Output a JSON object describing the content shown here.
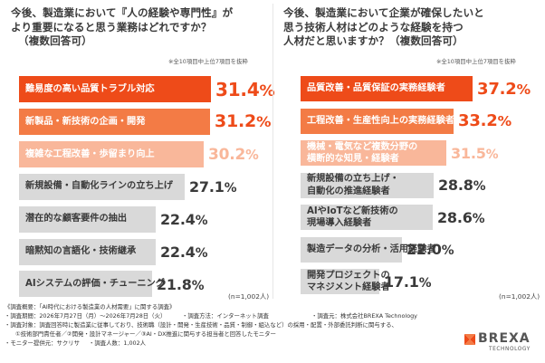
{
  "colors": {
    "dark": "#ee4b19",
    "mid": "#f37b45",
    "light": "#f9b79a",
    "track": "#d9d9d9",
    "dark_text": "#3a3a3a",
    "label_on_color": "#ffffff"
  },
  "left": {
    "title_lines": [
      "今後、製造業において『人の経験や専門性』が",
      "より重要になると思う業務はどれですか？",
      "（複数回答可）"
    ],
    "footnote": "※全10項目中上位7項目を抜粋",
    "n_label": "(n=1,002人)"
  },
  "right": {
    "title_lines": [
      "今後、製造業において企業が確保したいと",
      "思う技術人材はどのような経験を持つ",
      "人材だと思いますか？（複数回答可）"
    ],
    "footnote": "※全10項目中上位7項目を抜粋",
    "n_label": "(n=1,002人)"
  },
  "chart_data": [
    {
      "type": "bar",
      "orientation": "horizontal",
      "title": "今後、製造業において『人の経験や専門性』がより重要になると思う業務はどれですか？（複数回答可）",
      "unit": "%",
      "categories": [
        [
          "難易度の高い品質トラブル対応"
        ],
        [
          "新製品・新技術の企画・開発"
        ],
        [
          "複雑な工程改善・歩留まり向上"
        ],
        [
          "新規設備・自動化ラインの立ち上げ"
        ],
        [
          "潜在的な顧客要件の抽出"
        ],
        [
          "暗黙知の言語化・技術継承"
        ],
        [
          "AIシステムの評価・チューニング"
        ]
      ],
      "values": [
        31.4,
        31.2,
        30.2,
        27.1,
        22.4,
        22.4,
        21.8
      ],
      "value_labels": [
        "31.4%",
        "31.2%",
        "30.2%",
        "27.1%",
        "22.4%",
        "22.4%",
        "21.8%"
      ],
      "highlight": [
        "dark",
        "mid",
        "light",
        "none",
        "none",
        "none",
        "none"
      ]
    },
    {
      "type": "bar",
      "orientation": "horizontal",
      "title": "今後、製造業において企業が確保したいと思う技術人材はどのような経験を持つ人材だと思いますか？（複数回答可）",
      "unit": "%",
      "categories": [
        [
          "品質改善・品質保証の実務経験者"
        ],
        [
          "工程改善・生産性向上の実務経験者"
        ],
        [
          "機械・電気など複数分野の",
          "横断的な知見・経験者"
        ],
        [
          "新規設備の立ち上げ・",
          "自動化の推進経験者"
        ],
        [
          "AIやIoTなど新技術の",
          "現場導入経験者"
        ],
        [
          "製造データの分析・活用経験者"
        ],
        [
          "開発プロジェクトの",
          "マネジメント経験者"
        ]
      ],
      "values": [
        37.2,
        33.2,
        31.5,
        28.8,
        28.6,
        22.0,
        17.1
      ],
      "value_labels": [
        "37.2%",
        "33.2%",
        "31.5%",
        "28.8%",
        "28.6%",
        "22.0%",
        "17.1%"
      ],
      "highlight": [
        "dark",
        "mid",
        "light",
        "none",
        "none",
        "none",
        "none"
      ]
    }
  ],
  "survey": {
    "heading": "《調査概要：「AI時代における製造業の人材需要」に関する調査》",
    "period": "・調査期間：2026年7月27日（月）〜2026年7月28日（火）",
    "method": "・調査方法：インターネット調査",
    "organizer": "・調査元：株式会社BREXA Technology",
    "target_1": "・調査対象：調査回答時に製造業に従事しており、技術職（設計・開発・生産技術・品質・制御・組込など）の採用・配置・外部委託判断に関与する、",
    "target_2": "①技術部門責任者／②開発・設計マネージャー／③AI・DX推進に関与する担当者と回答したモニター",
    "provider": "・モニター提供元：サクリサ",
    "count": "・調査人数：1,002人"
  },
  "logo": {
    "name": "BREXA",
    "sub": "TECHNOLOGY"
  }
}
